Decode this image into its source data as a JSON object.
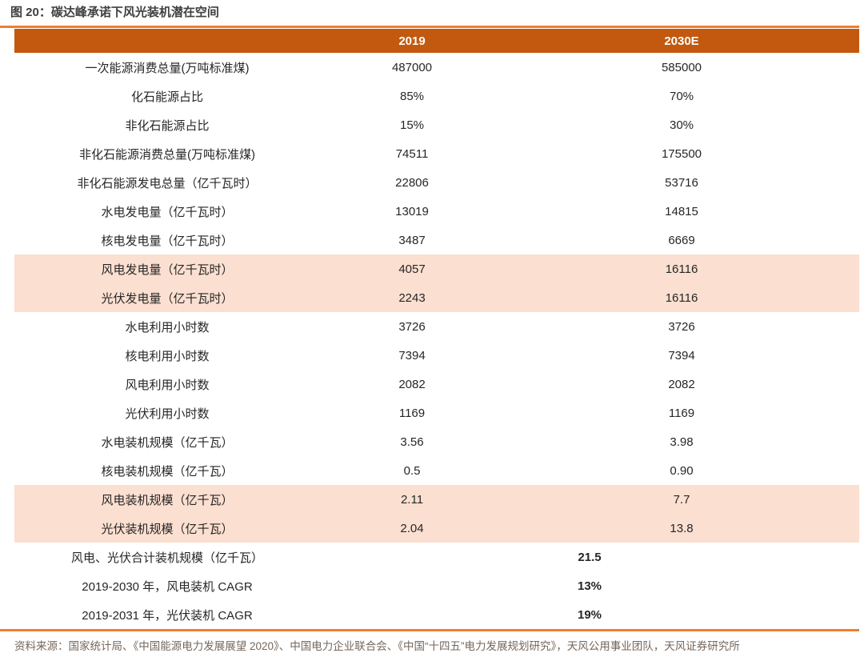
{
  "figure": {
    "title_full": "图 20：碳达峰承诺下风光装机潜在空间"
  },
  "colors": {
    "header_bg": "#C2590F",
    "accent_line": "#EE7F2D",
    "highlight_row_bg": "#FBDFD0",
    "title_text": "#3F3F3F",
    "body_text": "#262626",
    "header_text": "#FFFFFF",
    "source_text": "#75665B"
  },
  "table": {
    "columns": [
      "",
      "2019",
      "2030E"
    ],
    "rows": [
      {
        "label": "一次能源消费总量(万吨标准煤)",
        "v2019": "487000",
        "v2030": "585000",
        "highlight": false
      },
      {
        "label": "化石能源占比",
        "v2019": "85%",
        "v2030": "70%",
        "highlight": false
      },
      {
        "label": "非化石能源占比",
        "v2019": "15%",
        "v2030": "30%",
        "highlight": false
      },
      {
        "label": "非化石能源消费总量(万吨标准煤)",
        "v2019": "74511",
        "v2030": "175500",
        "highlight": false
      },
      {
        "label": "非化石能源发电总量（亿千瓦时）",
        "v2019": "22806",
        "v2030": "53716",
        "highlight": false
      },
      {
        "label": "水电发电量（亿千瓦时）",
        "v2019": "13019",
        "v2030": "14815",
        "highlight": false
      },
      {
        "label": "核电发电量（亿千瓦时）",
        "v2019": "3487",
        "v2030": "6669",
        "highlight": false
      },
      {
        "label": "风电发电量（亿千瓦时）",
        "v2019": "4057",
        "v2030": "16116",
        "highlight": true
      },
      {
        "label": "光伏发电量（亿千瓦时）",
        "v2019": "2243",
        "v2030": "16116",
        "highlight": true
      },
      {
        "label": "水电利用小时数",
        "v2019": "3726",
        "v2030": "3726",
        "highlight": false
      },
      {
        "label": "核电利用小时数",
        "v2019": "7394",
        "v2030": "7394",
        "highlight": false
      },
      {
        "label": "风电利用小时数",
        "v2019": "2082",
        "v2030": "2082",
        "highlight": false
      },
      {
        "label": "光伏利用小时数",
        "v2019": "1169",
        "v2030": "1169",
        "highlight": false
      },
      {
        "label": "水电装机规模（亿千瓦）",
        "v2019": "3.56",
        "v2030": "3.98",
        "highlight": false
      },
      {
        "label": "核电装机规模（亿千瓦）",
        "v2019": "0.5",
        "v2030": "0.90",
        "highlight": false
      },
      {
        "label": "风电装机规模（亿千瓦）",
        "v2019": "2.11",
        "v2030": "7.7",
        "highlight": true
      },
      {
        "label": "光伏装机规模（亿千瓦）",
        "v2019": "2.04",
        "v2030": "13.8",
        "highlight": true
      },
      {
        "label": "风电、光伏合计装机规模（亿千瓦）",
        "merged": "21.5",
        "highlight": false
      },
      {
        "label": "2019-2030 年，风电装机 CAGR",
        "merged": "13%",
        "highlight": false
      },
      {
        "label": "2019-2031 年，光伏装机 CAGR",
        "merged": "19%",
        "highlight": false
      }
    ]
  },
  "footer": {
    "source": "资料来源：国家统计局、《中国能源电力发展展望 2020》、中国电力企业联合会、《中国“十四五”电力发展规划研究》，天风公用事业团队，天风证券研究所"
  }
}
